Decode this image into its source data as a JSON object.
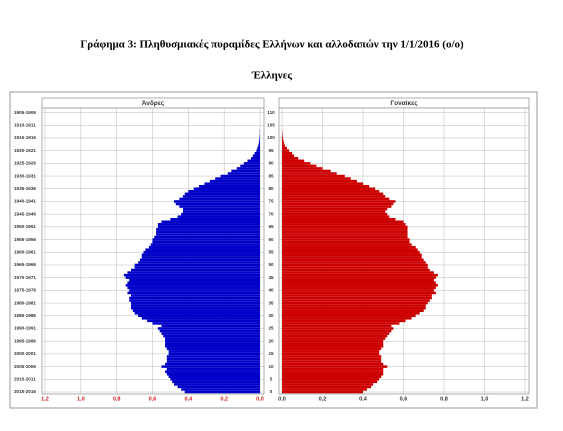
{
  "chart_data": {
    "type": "population-pyramid",
    "title": "Γράφημα 3: Πληθυσμιακές πυραμίδες Ελλήνων και αλλοδαπών την 1/1/2016 (ο/ο)",
    "subtitle": "Έλληνες",
    "ages": [
      0,
      1,
      2,
      3,
      4,
      5,
      6,
      7,
      8,
      9,
      10,
      11,
      12,
      13,
      14,
      15,
      16,
      17,
      18,
      19,
      20,
      21,
      22,
      23,
      24,
      25,
      26,
      27,
      28,
      29,
      30,
      31,
      32,
      33,
      34,
      35,
      36,
      37,
      38,
      39,
      40,
      41,
      42,
      43,
      44,
      45,
      46,
      47,
      48,
      49,
      50,
      51,
      52,
      53,
      54,
      55,
      56,
      57,
      58,
      59,
      60,
      61,
      62,
      63,
      64,
      65,
      66,
      67,
      68,
      69,
      70,
      71,
      72,
      73,
      74,
      75,
      76,
      77,
      78,
      79,
      80,
      81,
      82,
      83,
      84,
      85,
      86,
      87,
      88,
      89,
      90,
      91,
      92,
      93,
      94,
      95,
      96,
      97,
      98,
      99,
      100,
      101,
      102,
      103,
      104,
      105,
      106,
      107,
      108,
      109
    ],
    "ylim": [
      0,
      111
    ],
    "yticks": [
      0,
      5,
      10,
      15,
      20,
      25,
      30,
      35,
      40,
      45,
      50,
      55,
      60,
      65,
      70,
      75,
      80,
      85,
      90,
      95,
      100,
      105,
      110
    ],
    "left_yticks": [
      {
        "value": 0,
        "label": "2015-2016"
      },
      {
        "value": 5,
        "label": "2010-2011"
      },
      {
        "value": 10,
        "label": "2005-2006"
      },
      {
        "value": 15,
        "label": "2000-2001"
      },
      {
        "value": 20,
        "label": "1995-1996"
      },
      {
        "value": 25,
        "label": "1990-1991"
      },
      {
        "value": 30,
        "label": "1985-1986"
      },
      {
        "value": 35,
        "label": "1980-1981"
      },
      {
        "value": 40,
        "label": "1975-1976"
      },
      {
        "value": 45,
        "label": "1970-1971"
      },
      {
        "value": 50,
        "label": "1965-1966"
      },
      {
        "value": 55,
        "label": "1960-1961"
      },
      {
        "value": 60,
        "label": "1955-1956"
      },
      {
        "value": 65,
        "label": "1950-1951"
      },
      {
        "value": 70,
        "label": "1945-1946"
      },
      {
        "value": 75,
        "label": "1940-1941"
      },
      {
        "value": 80,
        "label": "1935-1936"
      },
      {
        "value": 85,
        "label": "1930-1931"
      },
      {
        "value": 90,
        "label": "1925-1926"
      },
      {
        "value": 95,
        "label": "1920-1921"
      },
      {
        "value": 100,
        "label": "1915-1916"
      },
      {
        "value": 105,
        "label": "1910-1911"
      },
      {
        "value": 110,
        "label": "1905-1906"
      }
    ],
    "grid": true,
    "series": [
      {
        "name": "Άνδρες",
        "color": "#0000c8",
        "tick_color": "#d02020",
        "xlim": [
          1.2,
          0
        ],
        "xticks": [
          {
            "value": 1.2,
            "label": "1,2"
          },
          {
            "value": 1.0,
            "label": "1,0"
          },
          {
            "value": 0.8,
            "label": "0,8"
          },
          {
            "value": 0.6,
            "label": "0,6"
          },
          {
            "value": 0.4,
            "label": "0,4"
          },
          {
            "value": 0.2,
            "label": "0,2"
          },
          {
            "value": 0,
            "label": "0,0"
          }
        ],
        "values": [
          0.42,
          0.44,
          0.46,
          0.48,
          0.49,
          0.5,
          0.51,
          0.52,
          0.53,
          0.52,
          0.55,
          0.53,
          0.52,
          0.52,
          0.52,
          0.51,
          0.51,
          0.52,
          0.53,
          0.53,
          0.53,
          0.53,
          0.54,
          0.55,
          0.56,
          0.57,
          0.55,
          0.6,
          0.63,
          0.66,
          0.68,
          0.7,
          0.71,
          0.72,
          0.72,
          0.72,
          0.73,
          0.73,
          0.72,
          0.74,
          0.73,
          0.74,
          0.75,
          0.74,
          0.73,
          0.75,
          0.76,
          0.74,
          0.72,
          0.7,
          0.7,
          0.68,
          0.67,
          0.66,
          0.66,
          0.65,
          0.64,
          0.62,
          0.61,
          0.6,
          0.6,
          0.59,
          0.58,
          0.58,
          0.58,
          0.57,
          0.57,
          0.55,
          0.5,
          0.46,
          0.44,
          0.43,
          0.43,
          0.45,
          0.47,
          0.48,
          0.45,
          0.43,
          0.42,
          0.4,
          0.37,
          0.34,
          0.31,
          0.28,
          0.25,
          0.22,
          0.18,
          0.16,
          0.13,
          0.11,
          0.09,
          0.07,
          0.05,
          0.04,
          0.03,
          0.02,
          0.015,
          0.01,
          0.007,
          0.005,
          0.003,
          0.002,
          0.001,
          0.001,
          0,
          0,
          0,
          0,
          0,
          0
        ]
      },
      {
        "name": "Γυναίκες",
        "color": "#cc0000",
        "tick_color": "#333333",
        "xlim": [
          0,
          1.2
        ],
        "xticks": [
          {
            "value": 0,
            "label": "0,0"
          },
          {
            "value": 0.2,
            "label": "0,2"
          },
          {
            "value": 0.4,
            "label": "0,4"
          },
          {
            "value": 0.6,
            "label": "0,6"
          },
          {
            "value": 0.8,
            "label": "0,8"
          },
          {
            "value": 1.0,
            "label": "1,0"
          },
          {
            "value": 1.2,
            "label": "1,2"
          }
        ],
        "values": [
          0.4,
          0.42,
          0.44,
          0.45,
          0.47,
          0.48,
          0.49,
          0.5,
          0.5,
          0.5,
          0.52,
          0.5,
          0.49,
          0.49,
          0.49,
          0.48,
          0.48,
          0.49,
          0.5,
          0.5,
          0.5,
          0.51,
          0.52,
          0.53,
          0.54,
          0.55,
          0.54,
          0.58,
          0.61,
          0.64,
          0.66,
          0.68,
          0.7,
          0.71,
          0.71,
          0.72,
          0.73,
          0.74,
          0.74,
          0.76,
          0.75,
          0.76,
          0.77,
          0.76,
          0.75,
          0.76,
          0.77,
          0.75,
          0.73,
          0.72,
          0.72,
          0.71,
          0.7,
          0.69,
          0.69,
          0.68,
          0.67,
          0.66,
          0.64,
          0.63,
          0.63,
          0.62,
          0.62,
          0.62,
          0.62,
          0.62,
          0.61,
          0.6,
          0.56,
          0.53,
          0.52,
          0.51,
          0.52,
          0.54,
          0.55,
          0.56,
          0.53,
          0.51,
          0.5,
          0.48,
          0.46,
          0.43,
          0.4,
          0.37,
          0.34,
          0.31,
          0.27,
          0.24,
          0.2,
          0.17,
          0.14,
          0.11,
          0.08,
          0.06,
          0.05,
          0.035,
          0.025,
          0.015,
          0.01,
          0.007,
          0.005,
          0.003,
          0.002,
          0.001,
          0,
          0,
          0,
          0,
          0,
          0
        ]
      }
    ]
  }
}
